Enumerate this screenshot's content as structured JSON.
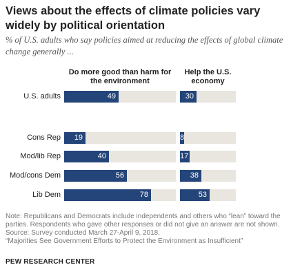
{
  "title": "Views about the effects of climate policies vary widely by political orientation",
  "subtitle": "% of U.S. adults who say policies aimed at reducing the effects of global climate change generally ...",
  "notes": [
    "Note: Republicans and Democrats include independents and others who “lean” toward the",
    "parties. Respondents who gave other responses or did not give an answer are not shown.",
    "Source: Survey conducted March 27-April 9, 2018.",
    "“Majorities See Government Efforts to Protect the Environment as Insufficient”"
  ],
  "logo": "PEW RESEARCH CENTER",
  "colors": {
    "bar": "#24457a",
    "track": "#e9e6df"
  },
  "chart_data": {
    "type": "bar",
    "orientation": "horizontal",
    "title": "Views about the effects of climate policies vary widely by political orientation",
    "subtitle": "% of U.S. adults who say policies aimed at reducing the effects of global climate change generally ...",
    "categories": [
      "U.S. adults",
      "Cons Rep",
      "Mod/lib Rep",
      "Mod/cons Dem",
      "Lib Dem"
    ],
    "series": [
      {
        "name": "Do more good than harm for the environment",
        "values": [
          49,
          19,
          40,
          56,
          78
        ]
      },
      {
        "name": "Help the U.S. economy",
        "values": [
          30,
          8,
          17,
          38,
          53
        ]
      }
    ],
    "xlim": [
      0,
      100
    ],
    "grid": false,
    "legend": "column headers"
  }
}
